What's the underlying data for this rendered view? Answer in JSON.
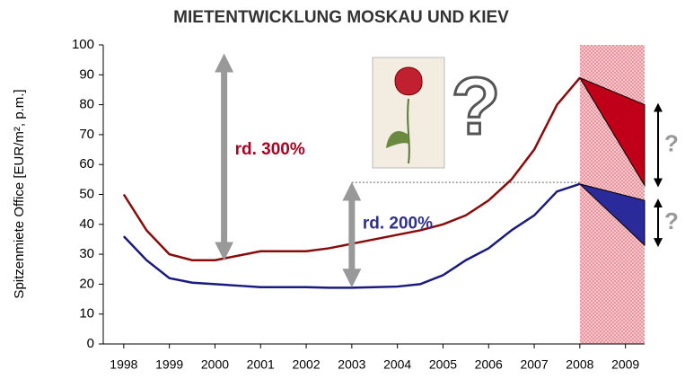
{
  "chart_data": {
    "type": "line",
    "title": "MIETENTWICKLUNG MOSKAU UND KIEV",
    "y_label": "Spitzenmiete Office [EUR/m², p.m.]",
    "x": [
      1998,
      1998.5,
      1999,
      1999.5,
      2000,
      2000.5,
      2001,
      2001.5,
      2002,
      2002.5,
      2003,
      2003.5,
      2004,
      2004.5,
      2005,
      2005.5,
      2006,
      2006.5,
      2007,
      2007.5,
      2008
    ],
    "series": [
      {
        "color": "#8b0a0a",
        "values": [
          50,
          38,
          30,
          28,
          28,
          29.5,
          31,
          31,
          31,
          32,
          33.5,
          35,
          36.5,
          38,
          40,
          43,
          48,
          55,
          65,
          80,
          89
        ]
      },
      {
        "color": "#1a1a80",
        "values": [
          36,
          28,
          22,
          20.5,
          20,
          19.5,
          19,
          19,
          19,
          18.8,
          18.8,
          19,
          19.2,
          20,
          23,
          28,
          32,
          38,
          43,
          51,
          53.5
        ]
      }
    ],
    "xlim": [
      1997.55,
      2009.42
    ],
    "xticks": [
      1998,
      1999,
      2000,
      2001,
      2002,
      2003,
      2004,
      2005,
      2006,
      2007,
      2008,
      2009
    ],
    "ylim": [
      0,
      100
    ],
    "yticks": [
      0,
      10,
      20,
      30,
      40,
      50,
      60,
      70,
      80,
      90,
      100
    ],
    "forecast_from": 2008,
    "fans": [
      {
        "color": "#c00018",
        "start": 89,
        "high": 80,
        "low": 53
      },
      {
        "color": "#2a2a9a",
        "start": 53.5,
        "high": 48,
        "low": 33
      }
    ],
    "reference_line": {
      "value": 54,
      "from": 2003,
      "to": 2008
    },
    "annotations": [
      {
        "text": "rd. 300%",
        "x": 2000.2,
        "from": 28,
        "to": 97,
        "color": "#b00020"
      },
      {
        "text": "rd. 200%",
        "x": 2003,
        "from": 19,
        "to": 54,
        "color": "#303090"
      }
    ],
    "question_marks": [
      "?",
      "?",
      "?"
    ]
  }
}
